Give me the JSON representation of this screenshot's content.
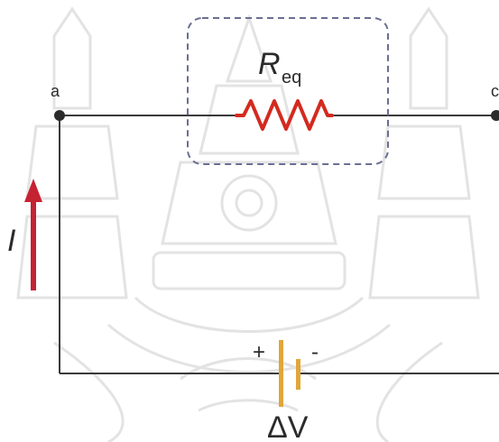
{
  "diagram": {
    "resistor_label": "R",
    "resistor_subscript": "eq",
    "node_a_label": "a",
    "node_b_label": "c",
    "current_label": "I",
    "battery_plus": "+",
    "battery_minus": "-",
    "voltage_label": "ΔV"
  },
  "colors": {
    "wire": "#3a3a3a",
    "resistor": "#d42a1f",
    "box_outline": "#6a6f93",
    "current_arrow": "#c52232",
    "battery": "#e0a63a",
    "watermark": "#e3e3e3"
  },
  "watermark": {
    "kind": "emblem-watermark"
  }
}
